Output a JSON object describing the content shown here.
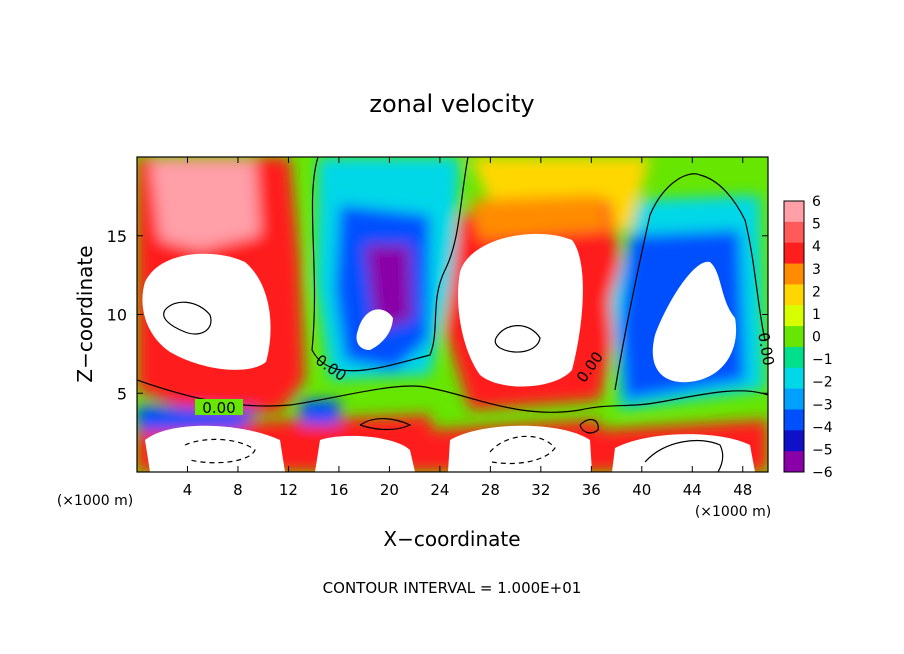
{
  "chart_data": {
    "type": "heatmap",
    "title": "zonal velocity",
    "xlabel": "X−coordinate",
    "ylabel": "Z−coordinate",
    "x_unit_left": "(×1000 m)",
    "x_unit_right": "(×1000 m)",
    "xlim": [
      0,
      50
    ],
    "ylim": [
      0,
      20
    ],
    "x_ticks": [
      4,
      8,
      12,
      16,
      20,
      24,
      28,
      32,
      36,
      40,
      44,
      48
    ],
    "y_ticks": [
      5,
      10,
      15
    ],
    "colorbar": {
      "levels": [
        6,
        5,
        4,
        3,
        2,
        1,
        0,
        -1,
        -2,
        -3,
        -4,
        -5,
        -6
      ],
      "colors": [
        "#ff9fa8",
        "#ff5a5a",
        "#ff1e1e",
        "#ff8c00",
        "#ffd700",
        "#d8ff00",
        "#66e600",
        "#00e08c",
        "#00d8e8",
        "#00a0ff",
        "#0050ff",
        "#1010c8",
        "#8a00a8"
      ],
      "saturated_positive": "#ffffff",
      "saturated_negative": "#ffffff"
    },
    "contour_labels": [
      "0.00",
      "0.00",
      "0.00",
      "0.00"
    ],
    "footer": "CONTOUR INTERVAL = 1.000E+01"
  }
}
